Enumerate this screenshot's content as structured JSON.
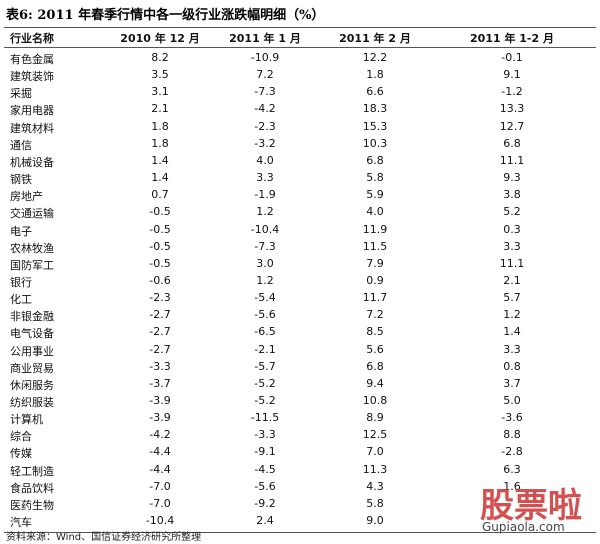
{
  "header": {
    "title": "表6: 2011 年春季行情中各一级行业涨跌幅明细（%）"
  },
  "table": {
    "columns": [
      "行业名称",
      "2010 年 12 月",
      "2011 年 1 月",
      "2011 年 2 月",
      "2011 年 1-2 月"
    ],
    "rows": [
      [
        "有色金属",
        "8.2",
        "-10.9",
        "12.2",
        "-0.1"
      ],
      [
        "建筑装饰",
        "3.5",
        "7.2",
        "1.8",
        "9.1"
      ],
      [
        "采掘",
        "3.1",
        "-7.3",
        "6.6",
        "-1.2"
      ],
      [
        "家用电器",
        "2.1",
        "-4.2",
        "18.3",
        "13.3"
      ],
      [
        "建筑材料",
        "1.8",
        "-2.3",
        "15.3",
        "12.7"
      ],
      [
        "通信",
        "1.8",
        "-3.2",
        "10.3",
        "6.8"
      ],
      [
        "机械设备",
        "1.4",
        "4.0",
        "6.8",
        "11.1"
      ],
      [
        "钢铁",
        "1.4",
        "3.3",
        "5.8",
        "9.3"
      ],
      [
        "房地产",
        "0.7",
        "-1.9",
        "5.9",
        "3.8"
      ],
      [
        "交通运输",
        "-0.5",
        "1.2",
        "4.0",
        "5.2"
      ],
      [
        "电子",
        "-0.5",
        "-10.4",
        "11.9",
        "0.3"
      ],
      [
        "农林牧渔",
        "-0.5",
        "-7.3",
        "11.5",
        "3.3"
      ],
      [
        "国防军工",
        "-0.5",
        "3.0",
        "7.9",
        "11.1"
      ],
      [
        "银行",
        "-0.6",
        "1.2",
        "0.9",
        "2.1"
      ],
      [
        "化工",
        "-2.3",
        "-5.4",
        "11.7",
        "5.7"
      ],
      [
        "非银金融",
        "-2.7",
        "-5.6",
        "7.2",
        "1.2"
      ],
      [
        "电气设备",
        "-2.7",
        "-6.5",
        "8.5",
        "1.4"
      ],
      [
        "公用事业",
        "-2.7",
        "-2.1",
        "5.6",
        "3.3"
      ],
      [
        "商业贸易",
        "-3.3",
        "-5.7",
        "6.8",
        "0.8"
      ],
      [
        "休闲服务",
        "-3.7",
        "-5.2",
        "9.4",
        "3.7"
      ],
      [
        "纺织服装",
        "-3.9",
        "-5.2",
        "10.8",
        "5.0"
      ],
      [
        "计算机",
        "-3.9",
        "-11.5",
        "8.9",
        "-3.6"
      ],
      [
        "综合",
        "-4.2",
        "-3.3",
        "12.5",
        "8.8"
      ],
      [
        "传媒",
        "-4.4",
        "-9.1",
        "7.0",
        "-2.8"
      ],
      [
        "轻工制造",
        "-4.4",
        "-4.5",
        "11.3",
        "6.3"
      ],
      [
        "食品饮料",
        "-7.0",
        "-5.6",
        "4.3",
        "1.6"
      ],
      [
        "医药生物",
        "-7.0",
        "-9.2",
        "5.8",
        null
      ],
      [
        "汽车",
        "-10.4",
        "2.4",
        "9.0",
        null
      ]
    ]
  },
  "footer": {
    "source": "资料来源：Wind、国信证券经济研究所整理"
  },
  "watermark": {
    "logo": "股票啦",
    "site": "Gupiaola.com"
  }
}
